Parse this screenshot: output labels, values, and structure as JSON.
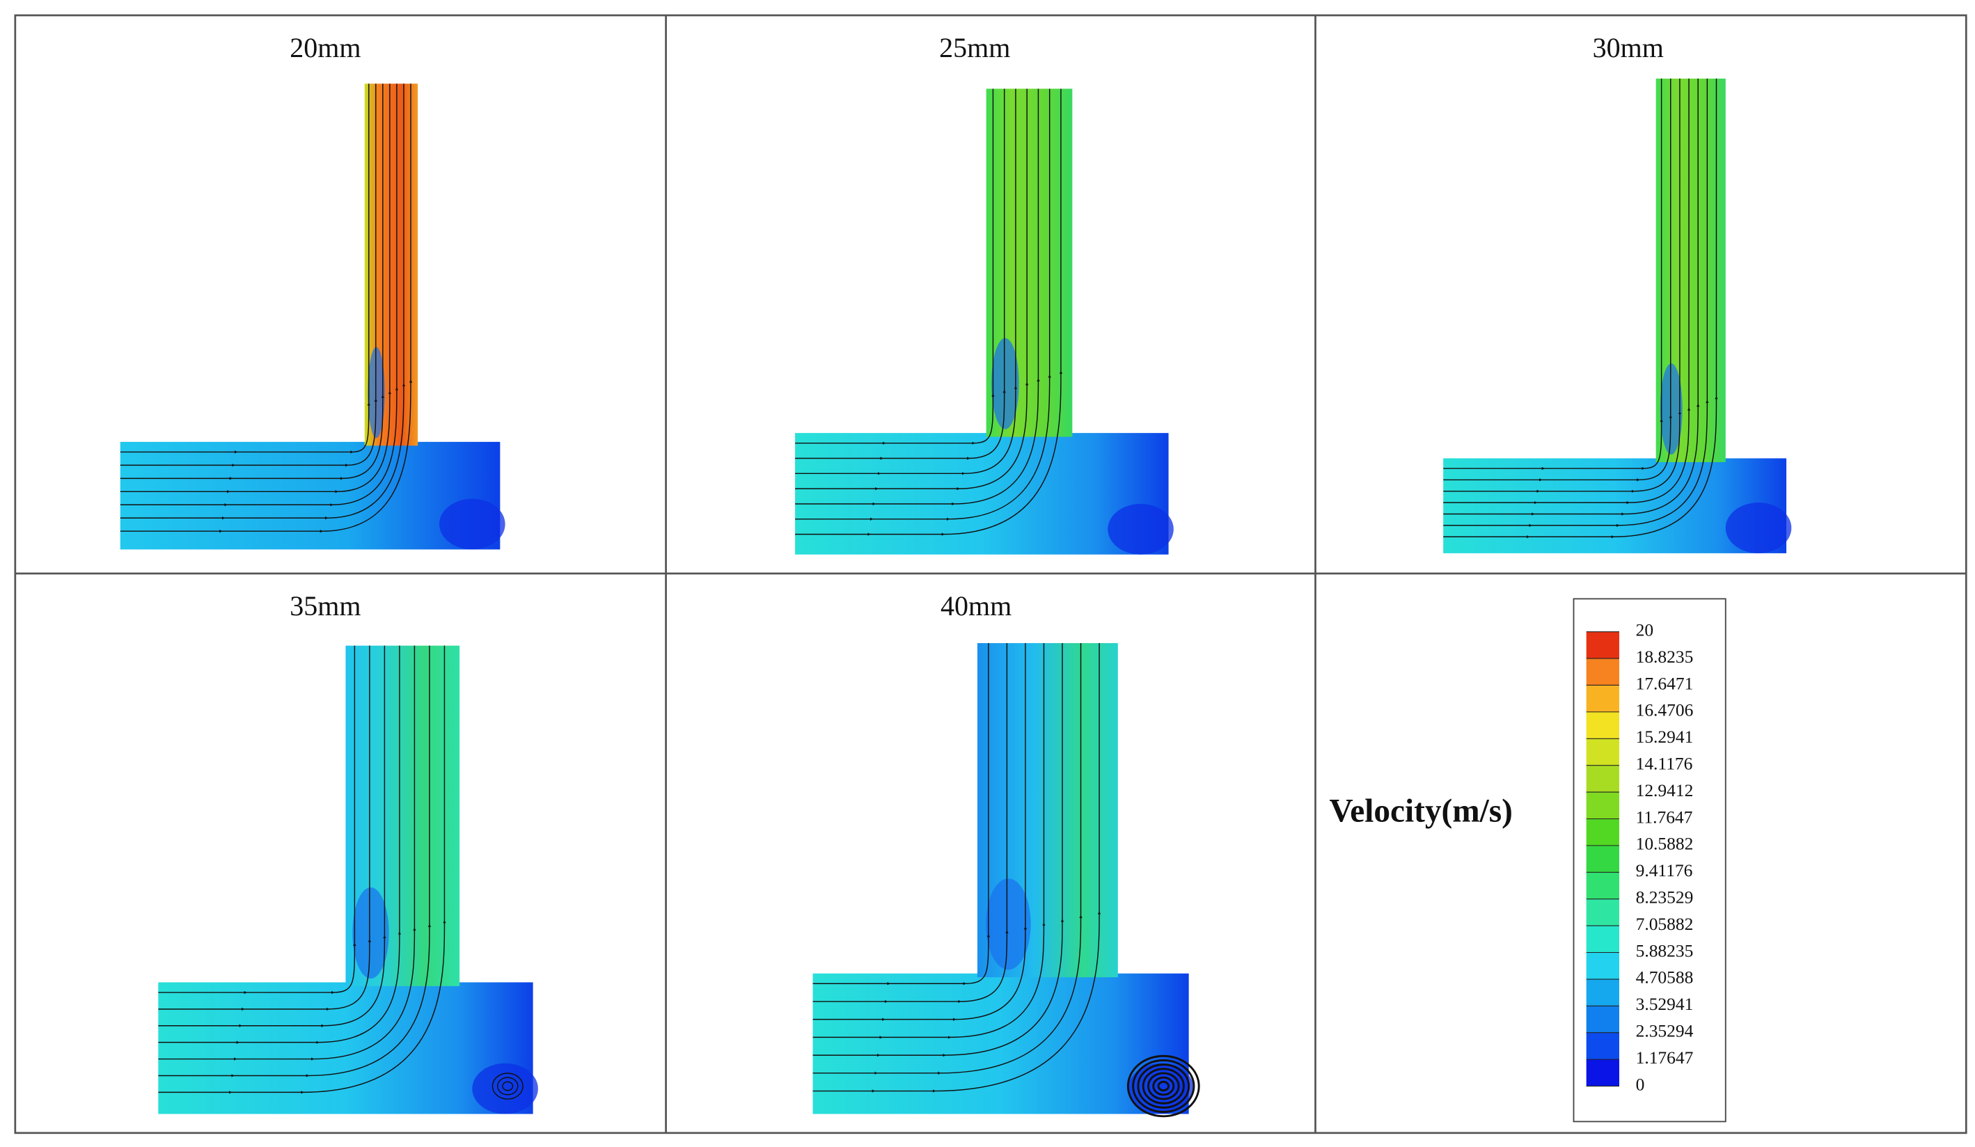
{
  "panels": [
    {
      "label": "20mm"
    },
    {
      "label": "25mm"
    },
    {
      "label": "30mm"
    },
    {
      "label": "35mm"
    },
    {
      "label": "40mm"
    }
  ],
  "legend": {
    "title": "Velocity(m/s)",
    "ticks": [
      20,
      18.8235,
      17.6471,
      16.4706,
      15.2941,
      14.1176,
      12.9412,
      11.7647,
      10.5882,
      9.41176,
      8.23529,
      7.05882,
      5.88235,
      4.70588,
      3.52941,
      2.35294,
      1.17647,
      0
    ],
    "colors": [
      "#0a14e6",
      "#0c4cef",
      "#1080ee",
      "#16a8ee",
      "#22d2ee",
      "#26e6cc",
      "#2ee6a2",
      "#30e070",
      "#34d842",
      "#52d822",
      "#80da22",
      "#a8dc22",
      "#d0e222",
      "#f2e222",
      "#f8b222",
      "#f68220",
      "#e63212"
    ]
  }
}
